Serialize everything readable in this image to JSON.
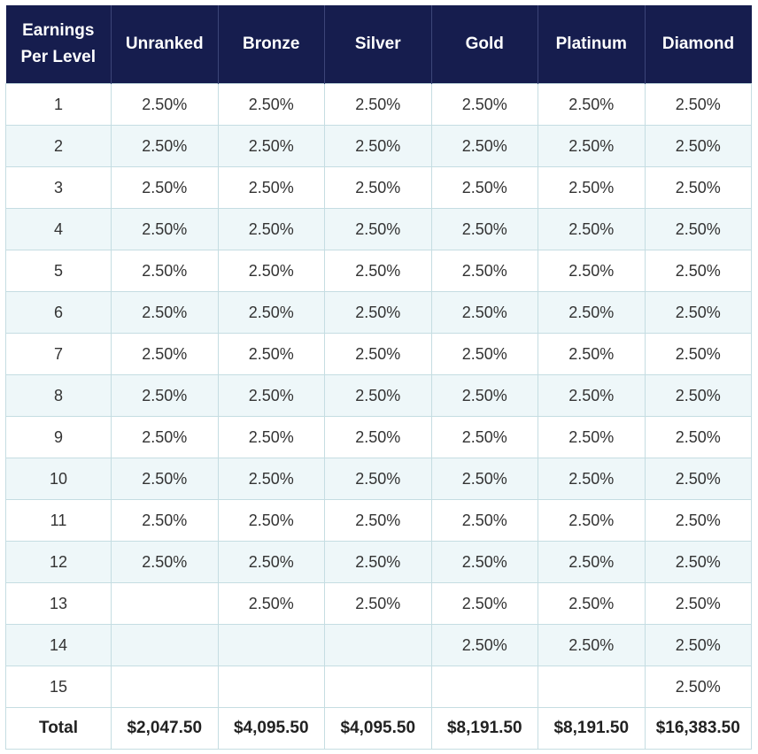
{
  "headers": [
    "Earnings Per Level",
    "Unranked",
    "Bronze",
    "Silver",
    "Gold",
    "Platinum",
    "Diamond"
  ],
  "rows": [
    [
      "1",
      "2.50%",
      "2.50%",
      "2.50%",
      "2.50%",
      "2.50%",
      "2.50%"
    ],
    [
      "2",
      "2.50%",
      "2.50%",
      "2.50%",
      "2.50%",
      "2.50%",
      "2.50%"
    ],
    [
      "3",
      "2.50%",
      "2.50%",
      "2.50%",
      "2.50%",
      "2.50%",
      "2.50%"
    ],
    [
      "4",
      "2.50%",
      "2.50%",
      "2.50%",
      "2.50%",
      "2.50%",
      "2.50%"
    ],
    [
      "5",
      "2.50%",
      "2.50%",
      "2.50%",
      "2.50%",
      "2.50%",
      "2.50%"
    ],
    [
      "6",
      "2.50%",
      "2.50%",
      "2.50%",
      "2.50%",
      "2.50%",
      "2.50%"
    ],
    [
      "7",
      "2.50%",
      "2.50%",
      "2.50%",
      "2.50%",
      "2.50%",
      "2.50%"
    ],
    [
      "8",
      "2.50%",
      "2.50%",
      "2.50%",
      "2.50%",
      "2.50%",
      "2.50%"
    ],
    [
      "9",
      "2.50%",
      "2.50%",
      "2.50%",
      "2.50%",
      "2.50%",
      "2.50%"
    ],
    [
      "10",
      "2.50%",
      "2.50%",
      "2.50%",
      "2.50%",
      "2.50%",
      "2.50%"
    ],
    [
      "11",
      "2.50%",
      "2.50%",
      "2.50%",
      "2.50%",
      "2.50%",
      "2.50%"
    ],
    [
      "12",
      "2.50%",
      "2.50%",
      "2.50%",
      "2.50%",
      "2.50%",
      "2.50%"
    ],
    [
      "13",
      "",
      "2.50%",
      "2.50%",
      "2.50%",
      "2.50%",
      "2.50%"
    ],
    [
      "14",
      "",
      "",
      "",
      "2.50%",
      "2.50%",
      "2.50%"
    ],
    [
      "15",
      "",
      "",
      "",
      "",
      "",
      "2.50%"
    ]
  ],
  "totals": [
    "Total",
    "$2,047.50",
    "$4,095.50",
    "$4,095.50",
    "$8,191.50",
    "$8,191.50",
    "$16,383.50"
  ],
  "colors": {
    "header_bg": "#161d4e",
    "stripe": "#eef7f9",
    "border": "#c5dde2"
  }
}
